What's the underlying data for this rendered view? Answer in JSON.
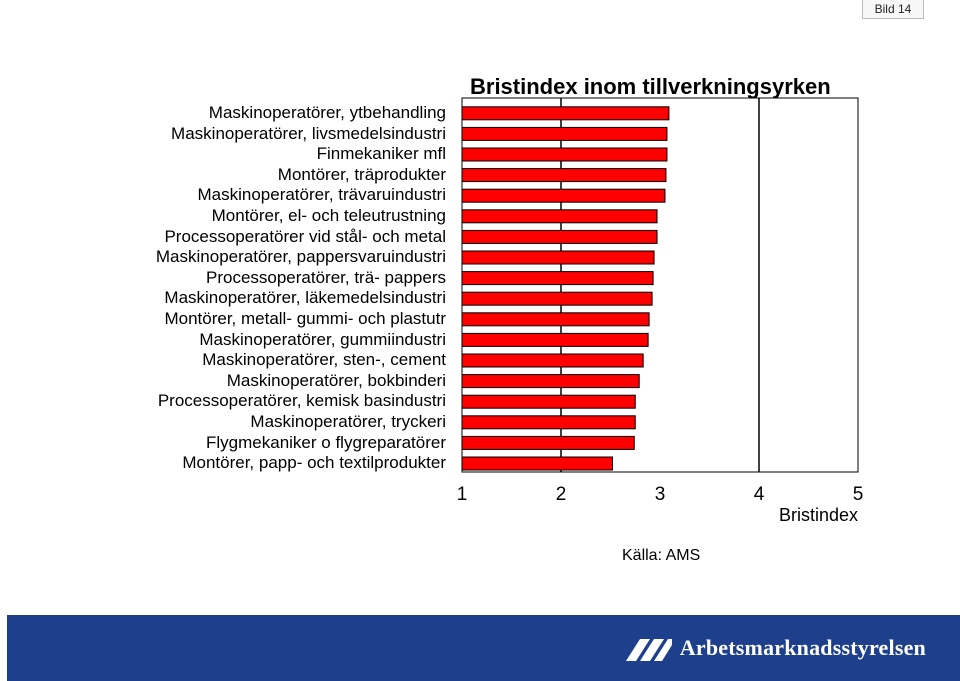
{
  "slide": {
    "number_label": "Bild 14"
  },
  "chart_data": {
    "type": "bar",
    "orientation": "horizontal",
    "title": "Bristindex inom tillverkningsyrken",
    "xlabel": "Bristindex",
    "ylabel": "",
    "xlim": [
      1,
      5
    ],
    "xticks": [
      "1",
      "2",
      "3",
      "4",
      "5"
    ],
    "grid": "vertical lines at 2 and 4",
    "bar_color": "#ff0000",
    "bar_border_color": "#000000",
    "categories": [
      "Maskinoperatörer, ytbehandling",
      "Maskinoperatörer, livsmedelsindustri",
      "Finmekaniker mfl",
      "Montörer, träprodukter",
      "Maskinoperatörer, trävaruindustri",
      "Montörer, el- och teleutrustning",
      "Processoperatörer vid stål- och metal",
      "Maskinoperatörer, pappersvaruindustri",
      "Processoperatörer, trä- pappers",
      "Maskinoperatörer, läkemedelsindustri",
      "Montörer, metall- gummi- och plastutr",
      "Maskinoperatörer, gummiindustri",
      "Maskinoperatörer, sten-, cement",
      "Maskinoperatörer, bokbinderi",
      "Processoperatörer, kemisk basindustri",
      "Maskinoperatörer, tryckeri",
      "Flygmekaniker o flygreparatörer",
      "Montörer, papp- och textilprodukter"
    ],
    "values": [
      3.09,
      3.07,
      3.07,
      3.06,
      3.05,
      2.97,
      2.97,
      2.94,
      2.93,
      2.92,
      2.89,
      2.88,
      2.83,
      2.79,
      2.75,
      2.75,
      2.74,
      2.52
    ]
  },
  "source": {
    "text": "Källa: AMS"
  },
  "footer": {
    "brand": "Arbetsmarknadsstyrelsen",
    "band_color": "#1e3f8c"
  }
}
